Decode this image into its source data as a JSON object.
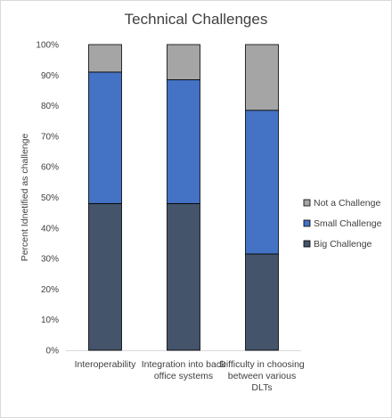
{
  "chart_data": {
    "type": "bar",
    "stacked": true,
    "title": "Technical Challenges",
    "ylabel": "Percent Idnetified as challenge",
    "xlabel": "",
    "ylim": [
      0,
      100
    ],
    "y_ticks": [
      "0%",
      "10%",
      "20%",
      "30%",
      "40%",
      "50%",
      "60%",
      "70%",
      "80%",
      "90%",
      "100%"
    ],
    "categories": [
      "Interoperability",
      "Integration into back office systems",
      "Difficulty in choosing between various DLTs"
    ],
    "series": [
      {
        "name": "Big Challenge",
        "color": "#44546a",
        "values": [
          48,
          48,
          31.5
        ]
      },
      {
        "name": "Small Challenge",
        "color": "#4472c4",
        "values": [
          43,
          40.5,
          47
        ]
      },
      {
        "name": "Not a Challenge",
        "color": "#a5a5a5",
        "values": [
          9,
          11.5,
          21.5
        ]
      }
    ],
    "legend_order": [
      "Not a Challenge",
      "Small Challenge",
      "Big Challenge"
    ],
    "legend_position": "right",
    "grid": false
  }
}
